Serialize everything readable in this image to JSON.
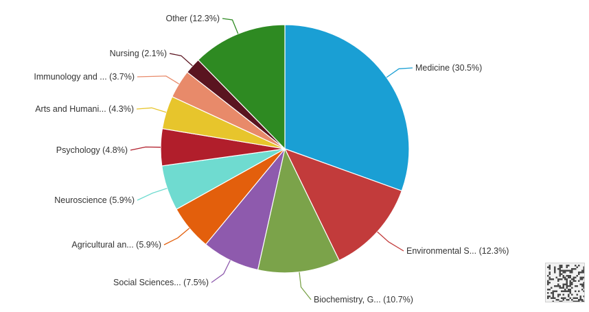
{
  "chart_data": {
    "type": "pie",
    "title": "",
    "start_angle_deg": 0,
    "direction": "clockwise",
    "slices": [
      {
        "label": "Medicine (30.5%)",
        "value": 30.5,
        "color": "#1a9fd4"
      },
      {
        "label": "Environmental S... (12.3%)",
        "value": 12.3,
        "color": "#c23b3b"
      },
      {
        "label": "Biochemistry, G... (10.7%)",
        "value": 10.7,
        "color": "#7ba34a"
      },
      {
        "label": "Social Sciences... (7.5%)",
        "value": 7.5,
        "color": "#8e5aad"
      },
      {
        "label": "Agricultural an... (5.9%)",
        "value": 5.9,
        "color": "#e35f0c"
      },
      {
        "label": "Neuroscience (5.9%)",
        "value": 5.9,
        "color": "#6fdbd0"
      },
      {
        "label": "Psychology (4.8%)",
        "value": 4.8,
        "color": "#b11e2b"
      },
      {
        "label": "Arts and Humani... (4.3%)",
        "value": 4.3,
        "color": "#e7c52c"
      },
      {
        "label": "Immunology and ... (3.7%)",
        "value": 3.7,
        "color": "#e88a6a"
      },
      {
        "label": "Nursing (2.1%)",
        "value": 2.1,
        "color": "#5a1420"
      },
      {
        "label": "Other (12.3%)",
        "value": 12.3,
        "color": "#2e8a22"
      }
    ]
  }
}
